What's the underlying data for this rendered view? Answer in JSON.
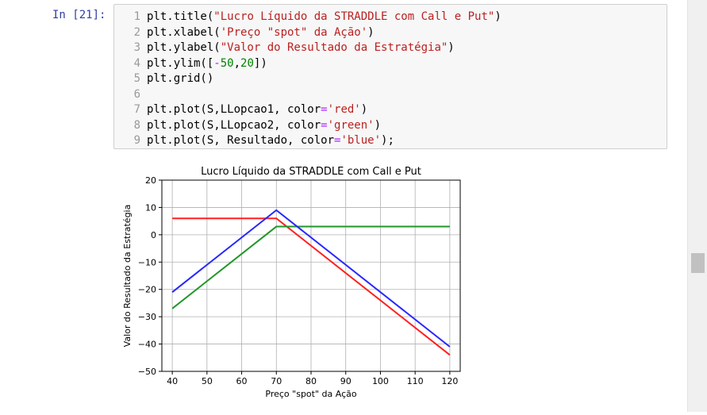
{
  "cell": {
    "prompt": "In [21]:",
    "lines": [
      {
        "n": "1",
        "tokens": [
          {
            "t": "plt.title(",
            "c": "txt"
          },
          {
            "t": "\"Lucro Líquido da STRADDLE com Call e Put\"",
            "c": "str"
          },
          {
            "t": ")",
            "c": "txt"
          }
        ]
      },
      {
        "n": "2",
        "tokens": [
          {
            "t": "plt.xlabel(",
            "c": "txt"
          },
          {
            "t": "'Preço \"spot\" da Ação'",
            "c": "str"
          },
          {
            "t": ")",
            "c": "txt"
          }
        ]
      },
      {
        "n": "3",
        "tokens": [
          {
            "t": "plt.ylabel(",
            "c": "txt"
          },
          {
            "t": "\"Valor do Resultado da Estratégia\"",
            "c": "str"
          },
          {
            "t": ")",
            "c": "txt"
          }
        ]
      },
      {
        "n": "4",
        "tokens": [
          {
            "t": "plt.ylim([",
            "c": "txt"
          },
          {
            "t": "-",
            "c": "op"
          },
          {
            "t": "50",
            "c": "num"
          },
          {
            "t": ",",
            "c": "txt"
          },
          {
            "t": "20",
            "c": "num"
          },
          {
            "t": "])",
            "c": "txt"
          }
        ]
      },
      {
        "n": "5",
        "tokens": [
          {
            "t": "plt.grid()",
            "c": "txt"
          }
        ]
      },
      {
        "n": "6",
        "tokens": []
      },
      {
        "n": "7",
        "tokens": [
          {
            "t": "plt.plot(S,LLopcao1, color",
            "c": "txt"
          },
          {
            "t": "=",
            "c": "op"
          },
          {
            "t": "'red'",
            "c": "str"
          },
          {
            "t": ")",
            "c": "txt"
          }
        ]
      },
      {
        "n": "8",
        "tokens": [
          {
            "t": "plt.plot(S,LLopcao2, color",
            "c": "txt"
          },
          {
            "t": "=",
            "c": "op"
          },
          {
            "t": "'green'",
            "c": "str"
          },
          {
            "t": ")",
            "c": "txt"
          }
        ]
      },
      {
        "n": "9",
        "tokens": [
          {
            "t": "plt.plot(S, Resultado, color",
            "c": "txt"
          },
          {
            "t": "=",
            "c": "op"
          },
          {
            "t": "'blue'",
            "c": "str"
          },
          {
            "t": ");",
            "c": "txt"
          }
        ]
      }
    ]
  },
  "chart_data": {
    "type": "line",
    "title": "Lucro Líquido da STRADDLE com Call e Put",
    "xlabel": "Preço \"spot\" da Ação",
    "ylabel": "Valor do Resultado da Estratégia",
    "xlim": [
      37,
      123
    ],
    "ylim": [
      -50,
      20
    ],
    "xticks": [
      40,
      50,
      60,
      70,
      80,
      90,
      100,
      110,
      120
    ],
    "yticks": [
      20,
      10,
      0,
      -10,
      -20,
      -30,
      -40,
      -50
    ],
    "ytick_labels": [
      "20",
      "10",
      "0",
      "−10",
      "−20",
      "−30",
      "−40",
      "−50"
    ],
    "grid": true,
    "series": [
      {
        "color": "#ff2020",
        "x": [
          40,
          70,
          120
        ],
        "y": [
          6,
          6,
          -44
        ]
      },
      {
        "color": "#22962b",
        "x": [
          40,
          70,
          120
        ],
        "y": [
          -27,
          3,
          3
        ]
      },
      {
        "color": "#2727ff",
        "x": [
          40,
          70,
          120
        ],
        "y": [
          -21,
          9,
          -41
        ]
      }
    ]
  }
}
